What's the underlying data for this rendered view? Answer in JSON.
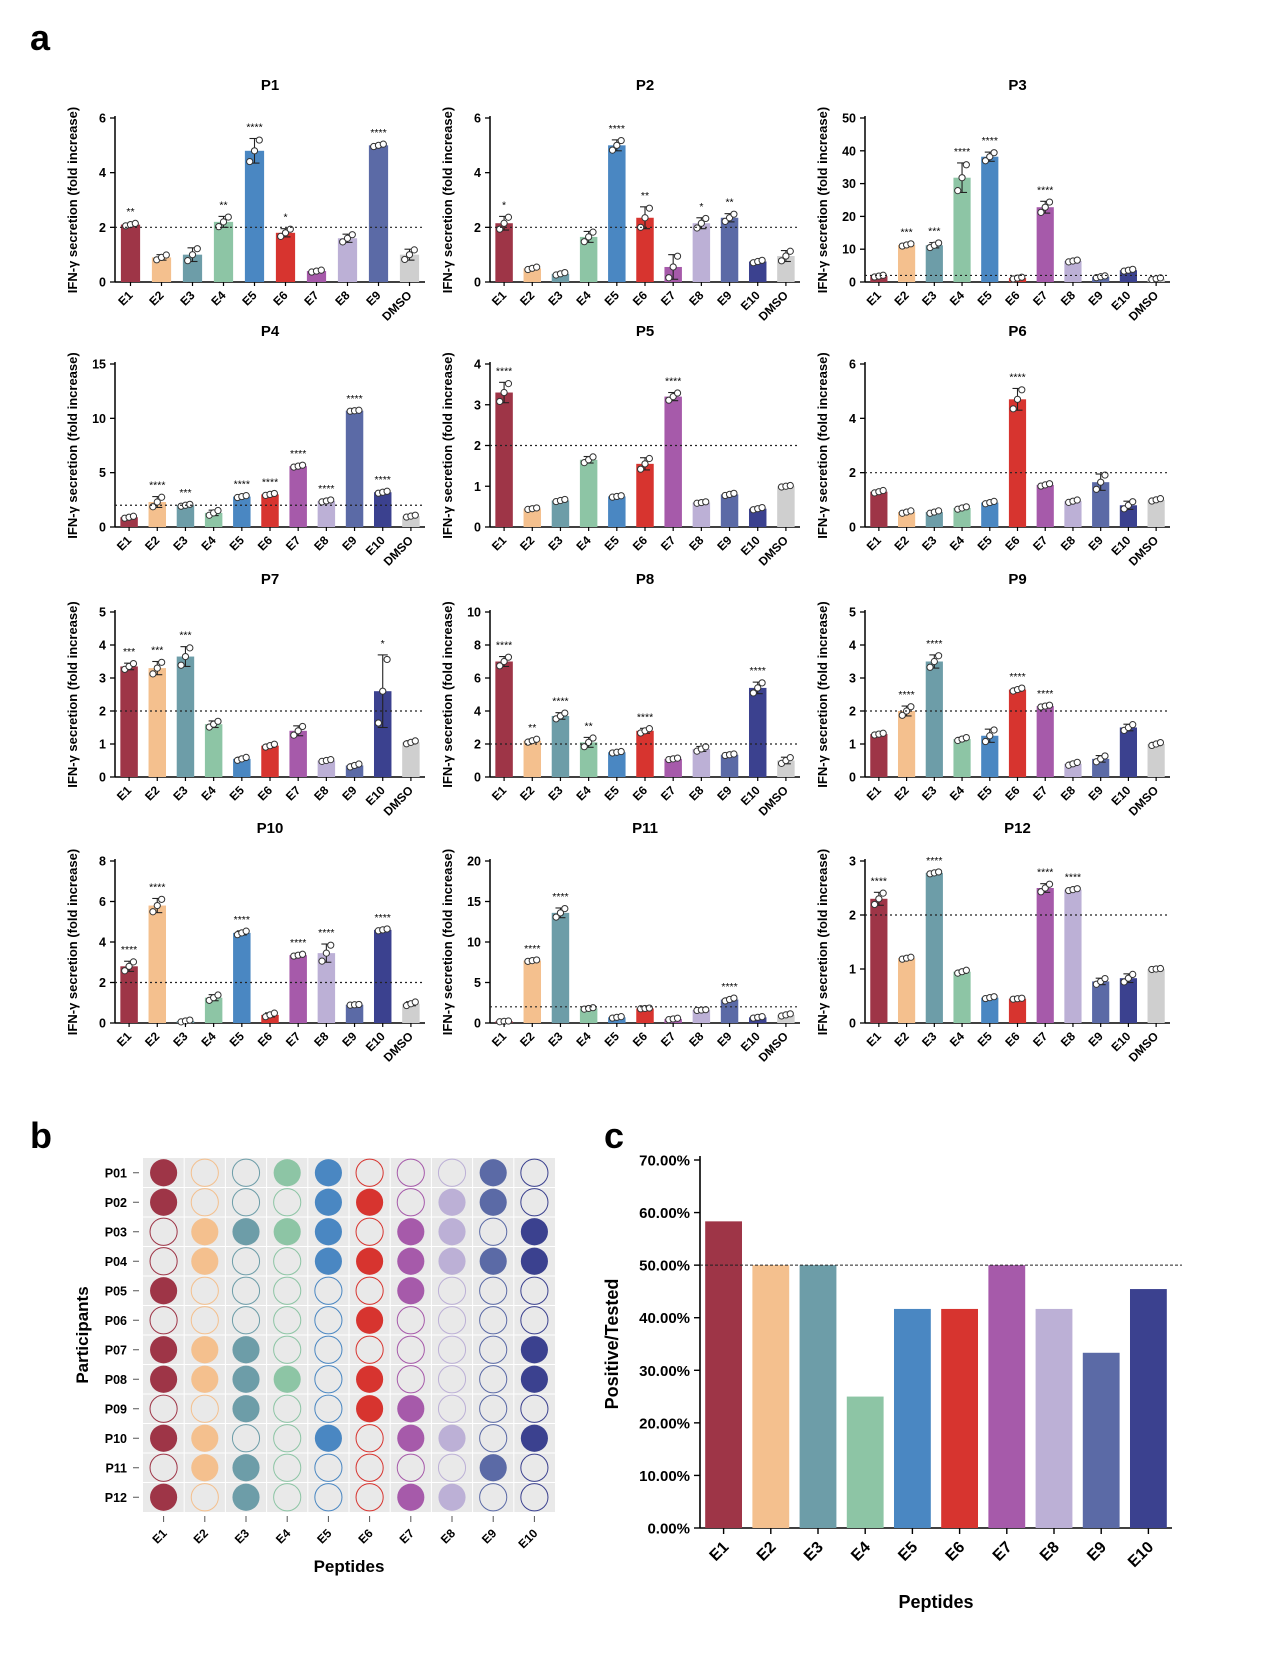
{
  "panel_labels": {
    "a": "a",
    "b": "b",
    "c": "c"
  },
  "colors": {
    "E1": "#9e3547",
    "E2": "#f4c08e",
    "E3": "#6d9da8",
    "E4": "#8dc5a5",
    "E5": "#4a87c2",
    "E6": "#d7342f",
    "E7": "#a65aaa",
    "E8": "#bcb0d6",
    "E9": "#5b6aa6",
    "E10": "#3b418f",
    "DMSO": "#cfcfcf"
  },
  "chart_data": [
    {
      "type": "bar",
      "title": "P1",
      "ylabel": "IFN-γ secretion (fold increase)",
      "ylim": [
        0,
        6
      ],
      "yticks": [
        "0",
        "2",
        "4",
        "6"
      ],
      "threshold": 2,
      "categories": [
        "E1",
        "E2",
        "E3",
        "E4",
        "E5",
        "E6",
        "E7",
        "E8",
        "E9",
        "DMSO"
      ],
      "values": [
        2.1,
        0.9,
        1.0,
        2.2,
        4.8,
        1.8,
        0.4,
        1.6,
        5.0,
        1.0
      ],
      "errors": [
        0.05,
        0.1,
        0.25,
        0.2,
        0.45,
        0.15,
        0.04,
        0.15,
        0.05,
        0.2
      ],
      "signif": [
        "**",
        "",
        "",
        "**",
        "****",
        "*",
        "",
        "",
        "****",
        ""
      ]
    },
    {
      "type": "bar",
      "title": "P2",
      "ylabel": "IFN-γ secretion (fold increase)",
      "ylim": [
        0,
        6
      ],
      "yticks": [
        "0",
        "2",
        "4",
        "6"
      ],
      "threshold": 2,
      "categories": [
        "E1",
        "E2",
        "E3",
        "E4",
        "E5",
        "E6",
        "E7",
        "E8",
        "E9",
        "E10",
        "DMSO"
      ],
      "values": [
        2.15,
        0.5,
        0.3,
        1.65,
        5.0,
        2.35,
        0.55,
        2.15,
        2.35,
        0.75,
        0.95
      ],
      "errors": [
        0.25,
        0.05,
        0.05,
        0.2,
        0.2,
        0.4,
        0.45,
        0.2,
        0.15,
        0.05,
        0.2
      ],
      "signif": [
        "*",
        "",
        "",
        "",
        "****",
        "**",
        "",
        "*",
        "**",
        "",
        ""
      ]
    },
    {
      "type": "bar",
      "title": "P3",
      "ylabel": "IFN-γ secretion (fold increase)",
      "ylim": [
        0,
        50
      ],
      "yticks": [
        "0",
        "10",
        "20",
        "30",
        "40",
        "50"
      ],
      "threshold": 2,
      "categories": [
        "E1",
        "E2",
        "E3",
        "E4",
        "E5",
        "E6",
        "E7",
        "E8",
        "E9",
        "E10",
        "DMSO"
      ],
      "values": [
        1.8,
        11.3,
        11.2,
        31.8,
        38.2,
        1.2,
        22.8,
        6.4,
        1.6,
        3.6,
        1.0
      ],
      "errors": [
        0.3,
        0.4,
        0.8,
        4.5,
        1.4,
        0.3,
        1.8,
        0.3,
        0.3,
        0.3,
        0.3
      ],
      "signif": [
        "",
        "***",
        "***",
        "****",
        "****",
        "",
        "****",
        "",
        "",
        "",
        ""
      ]
    },
    {
      "type": "bar",
      "title": "P4",
      "ylabel": "IFN-γ secretion (fold increase)",
      "ylim": [
        0,
        15
      ],
      "yticks": [
        "0",
        "5",
        "10",
        "15"
      ],
      "threshold": 2,
      "categories": [
        "E1",
        "E2",
        "E3",
        "E4",
        "E5",
        "E6",
        "E7",
        "E8",
        "E9",
        "E10",
        "DMSO"
      ],
      "values": [
        0.9,
        2.3,
        2.0,
        1.3,
        2.8,
        3.0,
        5.6,
        2.4,
        10.7,
        3.2,
        1.0
      ],
      "errors": [
        0.1,
        0.5,
        0.1,
        0.25,
        0.1,
        0.1,
        0.1,
        0.1,
        0.05,
        0.1,
        0.1
      ],
      "signif": [
        "",
        "****",
        "***",
        "",
        "****",
        "****",
        "****",
        "****",
        "****",
        "****",
        ""
      ]
    },
    {
      "type": "bar",
      "title": "P5",
      "ylabel": "IFN-γ secretion (fold increase)",
      "ylim": [
        0,
        4
      ],
      "yticks": [
        "0",
        "1",
        "2",
        "3",
        "4"
      ],
      "threshold": 2,
      "categories": [
        "E1",
        "E2",
        "E3",
        "E4",
        "E5",
        "E6",
        "E7",
        "E8",
        "E9",
        "E10",
        "DMSO"
      ],
      "values": [
        3.3,
        0.45,
        0.65,
        1.65,
        0.75,
        1.55,
        3.2,
        0.6,
        0.8,
        0.45,
        1.0
      ],
      "errors": [
        0.25,
        0.02,
        0.03,
        0.08,
        0.02,
        0.15,
        0.1,
        0.02,
        0.03,
        0.03,
        0.02
      ],
      "signif": [
        "****",
        "",
        "",
        "",
        "",
        "",
        "****",
        "",
        "",
        "",
        ""
      ]
    },
    {
      "type": "bar",
      "title": "P6",
      "ylabel": "IFN-γ secretion (fold increase)",
      "ylim": [
        0,
        6
      ],
      "yticks": [
        "0",
        "2",
        "4",
        "6"
      ],
      "threshold": 2,
      "categories": [
        "E1",
        "E2",
        "E3",
        "E4",
        "E5",
        "E6",
        "E7",
        "E8",
        "E9",
        "E10",
        "DMSO"
      ],
      "values": [
        1.3,
        0.55,
        0.55,
        0.7,
        0.9,
        4.7,
        1.55,
        0.95,
        1.65,
        0.8,
        1.0
      ],
      "errors": [
        0.05,
        0.05,
        0.05,
        0.05,
        0.05,
        0.4,
        0.05,
        0.05,
        0.3,
        0.15,
        0.05
      ],
      "signif": [
        "",
        "",
        "",
        "",
        "",
        "****",
        "",
        "",
        "",
        "",
        ""
      ]
    },
    {
      "type": "bar",
      "title": "P7",
      "ylabel": "IFN-γ secretion (fold increase)",
      "ylim": [
        0,
        5
      ],
      "yticks": [
        "0",
        "1",
        "2",
        "3",
        "4",
        "5"
      ],
      "threshold": 2,
      "categories": [
        "E1",
        "E2",
        "E3",
        "E4",
        "E5",
        "E6",
        "E7",
        "E8",
        "E9",
        "E10",
        "DMSO"
      ],
      "values": [
        3.35,
        3.3,
        3.65,
        1.6,
        0.55,
        0.95,
        1.4,
        0.5,
        0.35,
        2.6,
        1.05
      ],
      "errors": [
        0.1,
        0.2,
        0.3,
        0.1,
        0.05,
        0.05,
        0.15,
        0.03,
        0.05,
        1.1,
        0.05
      ],
      "signif": [
        "***",
        "***",
        "***",
        "",
        "",
        "",
        "",
        "",
        "",
        "*",
        ""
      ]
    },
    {
      "type": "bar",
      "title": "P8",
      "ylabel": "IFN-γ secretion (fold increase)",
      "ylim": [
        0,
        10
      ],
      "yticks": [
        "0",
        "2",
        "4",
        "6",
        "8",
        "10"
      ],
      "threshold": 2,
      "categories": [
        "E1",
        "E2",
        "E3",
        "E4",
        "E5",
        "E6",
        "E7",
        "E8",
        "E9",
        "E10",
        "DMSO"
      ],
      "values": [
        7.0,
        2.2,
        3.7,
        2.1,
        1.5,
        2.8,
        1.1,
        1.7,
        1.35,
        5.4,
        1.0
      ],
      "errors": [
        0.3,
        0.1,
        0.2,
        0.3,
        0.05,
        0.15,
        0.05,
        0.15,
        0.05,
        0.35,
        0.2
      ],
      "signif": [
        "****",
        "**",
        "****",
        "**",
        "",
        "****",
        "",
        "",
        "",
        "****",
        ""
      ]
    },
    {
      "type": "bar",
      "title": "P9",
      "ylabel": "IFN-γ secretion (fold increase)",
      "ylim": [
        0,
        5
      ],
      "yticks": [
        "0",
        "1",
        "2",
        "3",
        "4",
        "5"
      ],
      "threshold": 2,
      "categories": [
        "E1",
        "E2",
        "E3",
        "E4",
        "E5",
        "E6",
        "E7",
        "E8",
        "E9",
        "E10",
        "DMSO"
      ],
      "values": [
        1.3,
        2.0,
        3.5,
        1.15,
        1.25,
        2.65,
        2.15,
        0.4,
        0.55,
        1.5,
        1.0
      ],
      "errors": [
        0.03,
        0.15,
        0.2,
        0.05,
        0.2,
        0.05,
        0.03,
        0.05,
        0.1,
        0.1,
        0.05
      ],
      "signif": [
        "",
        "****",
        "****",
        "",
        "",
        "****",
        "****",
        "",
        "",
        "",
        ""
      ]
    },
    {
      "type": "bar",
      "title": "P10",
      "ylabel": "IFN-γ secretion (fold increase)",
      "ylim": [
        0,
        8
      ],
      "yticks": [
        "0",
        "2",
        "4",
        "6",
        "8"
      ],
      "threshold": 2,
      "categories": [
        "E1",
        "E2",
        "E3",
        "E4",
        "E5",
        "E6",
        "E7",
        "E8",
        "E9",
        "E10",
        "DMSO"
      ],
      "values": [
        2.8,
        5.8,
        0.1,
        1.25,
        4.45,
        0.4,
        3.35,
        3.45,
        0.9,
        4.6,
        0.95
      ],
      "errors": [
        0.25,
        0.35,
        0.05,
        0.15,
        0.1,
        0.1,
        0.05,
        0.45,
        0.02,
        0.05,
        0.1
      ],
      "signif": [
        "****",
        "****",
        "",
        "",
        "****",
        "",
        "****",
        "****",
        "",
        "****",
        ""
      ]
    },
    {
      "type": "bar",
      "title": "P11",
      "ylabel": "IFN-γ secretion (fold increase)",
      "ylim": [
        0,
        20
      ],
      "yticks": [
        "0",
        "5",
        "10",
        "15",
        "20"
      ],
      "threshold": 2,
      "categories": [
        "E1",
        "E2",
        "E3",
        "E4",
        "E5",
        "E6",
        "E7",
        "E8",
        "E9",
        "E10",
        "DMSO"
      ],
      "values": [
        0.2,
        7.7,
        13.6,
        1.8,
        0.7,
        1.8,
        0.5,
        1.6,
        2.9,
        0.7,
        1.0
      ],
      "errors": [
        0.05,
        0.1,
        0.6,
        0.1,
        0.1,
        0.05,
        0.1,
        0.05,
        0.2,
        0.1,
        0.15
      ],
      "signif": [
        "",
        "****",
        "****",
        "",
        "",
        "",
        "",
        "",
        "****",
        "",
        ""
      ]
    },
    {
      "type": "bar",
      "title": "P12",
      "ylabel": "IFN-γ secretion (fold increase)",
      "ylim": [
        0,
        3
      ],
      "yticks": [
        "0",
        "1",
        "2",
        "3"
      ],
      "threshold": 2,
      "categories": [
        "E1",
        "E2",
        "E3",
        "E4",
        "E5",
        "E6",
        "E7",
        "E8",
        "E9",
        "E10",
        "DMSO"
      ],
      "values": [
        2.3,
        1.2,
        2.78,
        0.95,
        0.47,
        0.45,
        2.5,
        2.47,
        0.77,
        0.83,
        1.0
      ],
      "errors": [
        0.12,
        0.02,
        0.02,
        0.03,
        0.02,
        0.01,
        0.08,
        0.02,
        0.06,
        0.08,
        0.01
      ],
      "signif": [
        "****",
        "",
        "****",
        "",
        "",
        "",
        "****",
        "****",
        "",
        "",
        ""
      ]
    },
    {
      "type": "heatmap",
      "title": "",
      "xlabel": "Peptides",
      "ylabel": "Participants",
      "x": [
        "E1",
        "E2",
        "E3",
        "E4",
        "E5",
        "E6",
        "E7",
        "E8",
        "E9",
        "E10"
      ],
      "y": [
        "P01",
        "P02",
        "P03",
        "P04",
        "P05",
        "P06",
        "P07",
        "P08",
        "P09",
        "P10",
        "P11",
        "P12"
      ],
      "matrix": [
        [
          1,
          0,
          0,
          1,
          1,
          0,
          0,
          0,
          1,
          0
        ],
        [
          1,
          0,
          0,
          0,
          1,
          1,
          0,
          1,
          1,
          0
        ],
        [
          0,
          1,
          1,
          1,
          1,
          0,
          1,
          1,
          0,
          1
        ],
        [
          0,
          1,
          0,
          0,
          1,
          1,
          1,
          1,
          1,
          1
        ],
        [
          1,
          0,
          0,
          0,
          0,
          0,
          1,
          0,
          0,
          0
        ],
        [
          0,
          0,
          0,
          0,
          0,
          1,
          0,
          0,
          0,
          0
        ],
        [
          1,
          1,
          1,
          0,
          0,
          0,
          0,
          0,
          0,
          1
        ],
        [
          1,
          1,
          1,
          1,
          0,
          1,
          0,
          0,
          0,
          1
        ],
        [
          0,
          0,
          1,
          0,
          0,
          1,
          1,
          0,
          0,
          0
        ],
        [
          1,
          1,
          0,
          0,
          1,
          0,
          1,
          1,
          0,
          1
        ],
        [
          0,
          1,
          1,
          0,
          0,
          0,
          0,
          0,
          1,
          0
        ],
        [
          1,
          0,
          1,
          0,
          0,
          0,
          1,
          1,
          0,
          0
        ]
      ]
    },
    {
      "type": "bar",
      "title": "",
      "xlabel": "Peptides",
      "ylabel": "Positive/Tested",
      "ylim": [
        0,
        70
      ],
      "threshold": 50,
      "yticks": [
        "0.00%",
        "10.00%",
        "20.00%",
        "30.00%",
        "40.00%",
        "50.00%",
        "60.00%",
        "70.00%"
      ],
      "categories": [
        "E1",
        "E2",
        "E3",
        "E4",
        "E5",
        "E6",
        "E7",
        "E8",
        "E9",
        "E10"
      ],
      "values": [
        58.33,
        50.0,
        50.0,
        25.0,
        41.67,
        41.67,
        50.0,
        41.67,
        33.33,
        45.45
      ]
    }
  ]
}
